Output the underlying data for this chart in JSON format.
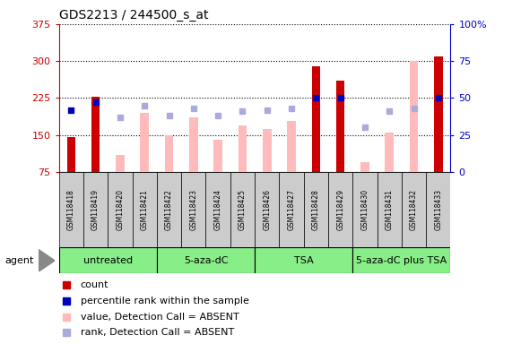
{
  "title": "GDS2213 / 244500_s_at",
  "samples": [
    "GSM118418",
    "GSM118419",
    "GSM118420",
    "GSM118421",
    "GSM118422",
    "GSM118423",
    "GSM118424",
    "GSM118425",
    "GSM118426",
    "GSM118427",
    "GSM118428",
    "GSM118429",
    "GSM118430",
    "GSM118431",
    "GSM118432",
    "GSM118433"
  ],
  "groups": [
    {
      "label": "untreated",
      "start": 0,
      "end": 3
    },
    {
      "label": "5-aza-dC",
      "start": 4,
      "end": 7
    },
    {
      "label": "TSA",
      "start": 8,
      "end": 11
    },
    {
      "label": "5-aza-dC plus TSA",
      "start": 12,
      "end": 15
    }
  ],
  "detection_call": [
    "P",
    "P",
    "A",
    "A",
    "A",
    "A",
    "A",
    "A",
    "A",
    "A",
    "P",
    "P",
    "A",
    "A",
    "A",
    "P"
  ],
  "count_values": [
    145,
    228,
    null,
    null,
    null,
    null,
    null,
    null,
    null,
    null,
    290,
    260,
    null,
    null,
    null,
    310
  ],
  "absent_values": [
    null,
    null,
    110,
    195,
    150,
    185,
    140,
    170,
    163,
    178,
    null,
    null,
    95,
    155,
    300,
    null
  ],
  "rank_present_pct": [
    42,
    47,
    null,
    null,
    null,
    null,
    null,
    null,
    null,
    null,
    50,
    50,
    null,
    null,
    null,
    50
  ],
  "rank_absent_pct": [
    null,
    null,
    37,
    45,
    38,
    43,
    38,
    41,
    42,
    43,
    null,
    null,
    30,
    41,
    43,
    null
  ],
  "ylim_left": [
    75,
    375
  ],
  "ylim_right": [
    0,
    100
  ],
  "yticks_left": [
    75,
    150,
    225,
    300,
    375
  ],
  "yticks_right": [
    0,
    25,
    50,
    75,
    100
  ],
  "color_count": "#cc0000",
  "color_rank_present": "#0000bb",
  "color_absent_value": "#ffbbbb",
  "color_absent_rank": "#aaaadd",
  "color_group_bg": "#88ee88",
  "color_sample_bg": "#cccccc",
  "bar_width": 0.35
}
